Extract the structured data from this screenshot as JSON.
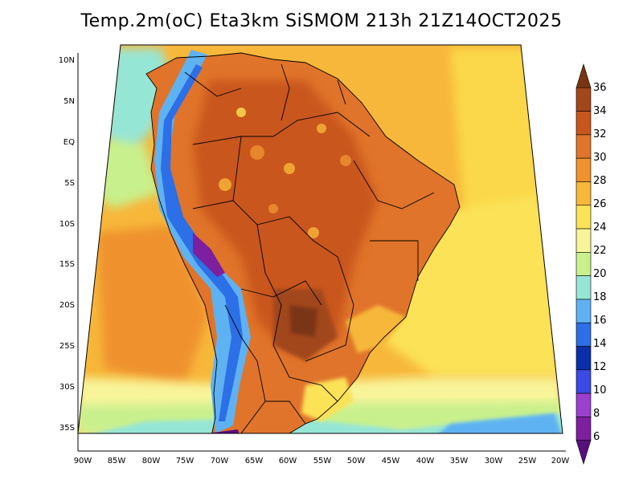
{
  "title": "Temp.2m(oC) Eta3km SiSMOM 213h 21Z14OCT2025",
  "map": {
    "variable": "2 m air temperature",
    "units": "oC",
    "region": "South America",
    "lat_ticks": [
      "10N",
      "5N",
      "EQ",
      "5S",
      "10S",
      "15S",
      "20S",
      "25S",
      "30S",
      "35S"
    ],
    "lon_ticks": [
      "90W",
      "85W",
      "80W",
      "75W",
      "70W",
      "65W",
      "60W",
      "55W",
      "50W",
      "45W",
      "40W",
      "35W",
      "30W",
      "25W",
      "20W"
    ]
  },
  "colorbar": {
    "levels": [
      "36",
      "34",
      "32",
      "30",
      "28",
      "26",
      "24",
      "22",
      "20",
      "18",
      "16",
      "14",
      "12",
      "10",
      "8",
      "6"
    ],
    "colors": [
      "#7a3413",
      "#a2461c",
      "#c9561e",
      "#e0742a",
      "#ef922e",
      "#f7b73a",
      "#fbe257",
      "#f8f49a",
      "#c8f08c",
      "#96e6d6",
      "#5fb2f2",
      "#2c6fe6",
      "#0c2eab",
      "#3b4ae4",
      "#9b3fd0",
      "#7d1f9f",
      "#5a0f7f"
    ]
  }
}
